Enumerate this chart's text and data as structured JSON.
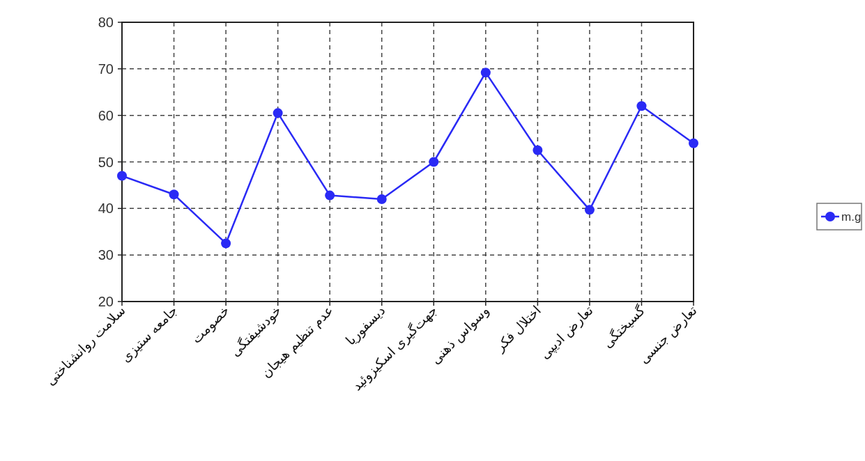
{
  "chart_data": {
    "type": "line",
    "categories": [
      "سلامت روانشناختی",
      "جامعه ستیزی",
      "خصومت",
      "خودشیفتگی",
      "عدم تنظیم هیجان",
      "دیسفوریا",
      "جهت‌گیری اسکیزوئید",
      "وسواس ذهنی",
      "اختلال فکر",
      "تعارض ادیپی",
      "گسیختگی",
      "تعارض جنسی"
    ],
    "series": [
      {
        "name": "m.g",
        "color": "#2a2af5",
        "values": [
          47,
          43,
          32.5,
          60.5,
          42.8,
          42,
          50,
          69.2,
          52.5,
          39.7,
          62,
          54
        ]
      }
    ],
    "ylim": [
      20,
      80
    ],
    "yticks": [
      20,
      30,
      40,
      50,
      60,
      70,
      80
    ],
    "grid": true,
    "legend": "right",
    "marker": "circle",
    "line_style": "solid"
  }
}
